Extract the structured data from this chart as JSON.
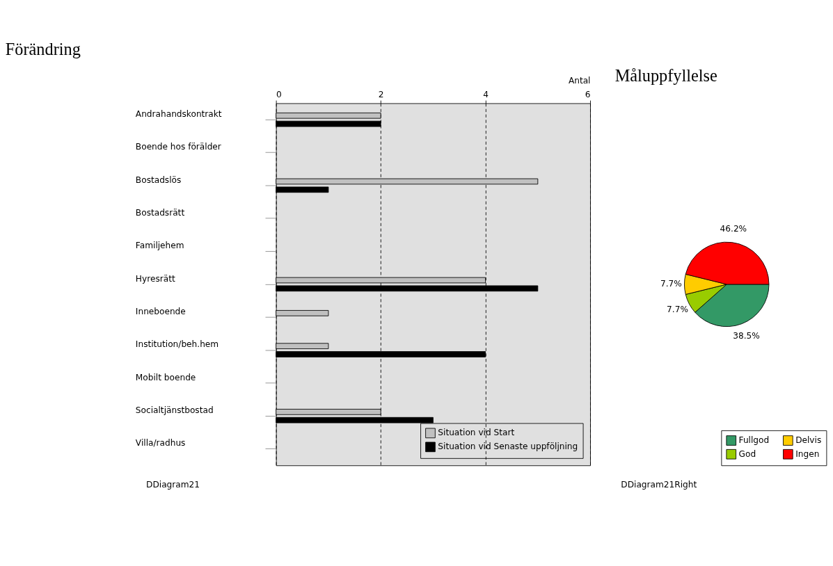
{
  "chart_data": [
    {
      "type": "bar",
      "title": "Förändring",
      "xlabel": "Antal",
      "orientation": "horizontal",
      "categories": [
        "Andrahandskontrakt",
        "Boende hos förälder",
        "Bostadslös",
        "Bostadsrätt",
        "Familjehem",
        "Hyresrätt",
        "Inneboende",
        "Institution/beh.hem",
        "Mobilt boende",
        "Socialtjänstbostad",
        "Villa/radhus"
      ],
      "series": [
        {
          "name": "Situation vid Start",
          "color": "#c0c0c0",
          "values": [
            2,
            0,
            5,
            0,
            0,
            4,
            1,
            1,
            0,
            2,
            0
          ]
        },
        {
          "name": "Situation vid Senaste uppföljning",
          "color": "#000000",
          "values": [
            2,
            0,
            1,
            0,
            0,
            5,
            0,
            4,
            0,
            3,
            0
          ]
        }
      ],
      "xlim": [
        0,
        6
      ],
      "xticks": [
        0,
        2,
        4,
        6
      ],
      "grid": "x",
      "legend": "bottom right",
      "annotations": [
        "DDiagram21"
      ]
    },
    {
      "type": "pie",
      "title": "Måluppfyllelse",
      "categories": [
        "Fullgod",
        "God",
        "Delvis",
        "Ingen"
      ],
      "values": [
        38.5,
        7.7,
        7.7,
        46.2
      ],
      "colors": [
        "#339966",
        "#99cc00",
        "#ffcc00",
        "#ff0000"
      ],
      "value_labels": [
        "38.5%",
        "7.7%",
        "7.7%",
        "46.2%"
      ],
      "legend": "bottom right",
      "annotations": [
        "DDiagram21Right"
      ]
    }
  ]
}
